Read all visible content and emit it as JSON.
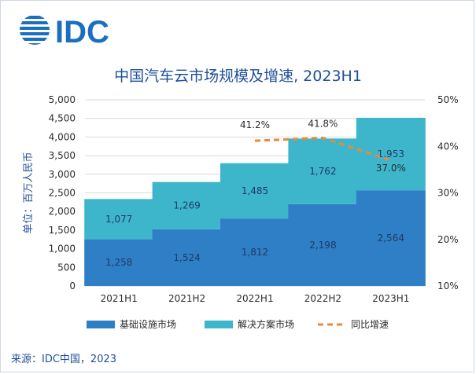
{
  "brand": {
    "logo_text": "IDC",
    "color": "#1a6fc0"
  },
  "chart_data": {
    "type": "bar",
    "stacked": true,
    "title": "中国汽车云市场规模及增速, 2023H1",
    "categories": [
      "2021H1",
      "2021H2",
      "2022H1",
      "2022H2",
      "2023H1"
    ],
    "series": [
      {
        "name": "基础设施市场",
        "values": [
          1258,
          1524,
          1812,
          2198,
          2564
        ],
        "color": "#2e7fc5",
        "labels": [
          "1,258",
          "1,524",
          "1,812",
          "2,198",
          "2,564"
        ]
      },
      {
        "name": "解决方案市场",
        "values": [
          1077,
          1269,
          1485,
          1762,
          1953
        ],
        "color": "#3db6cb",
        "labels": [
          "1,077",
          "1,269",
          "1,485",
          "1,762",
          "1,953"
        ]
      }
    ],
    "line": {
      "name": "同比增速",
      "color": "#e8893a",
      "categories": [
        "2022H1",
        "2022H2",
        "2023H1"
      ],
      "values": [
        41.2,
        41.8,
        37.0
      ],
      "labels": [
        "41.2%",
        "41.8%",
        "37.0%"
      ]
    },
    "ylabel": "单位：百万人民币",
    "ylim": [
      0,
      5000
    ],
    "yticks": [
      "0",
      "500",
      "1,000",
      "1,500",
      "2,000",
      "2,500",
      "3,000",
      "3,500",
      "4,000",
      "4,500",
      "5,000"
    ],
    "y2lim": [
      10,
      50
    ],
    "y2ticks": [
      "10%",
      "20%",
      "30%",
      "40%",
      "50%"
    ],
    "grid": true,
    "legend": "bottom"
  },
  "source": "来源：IDC中国，2023"
}
